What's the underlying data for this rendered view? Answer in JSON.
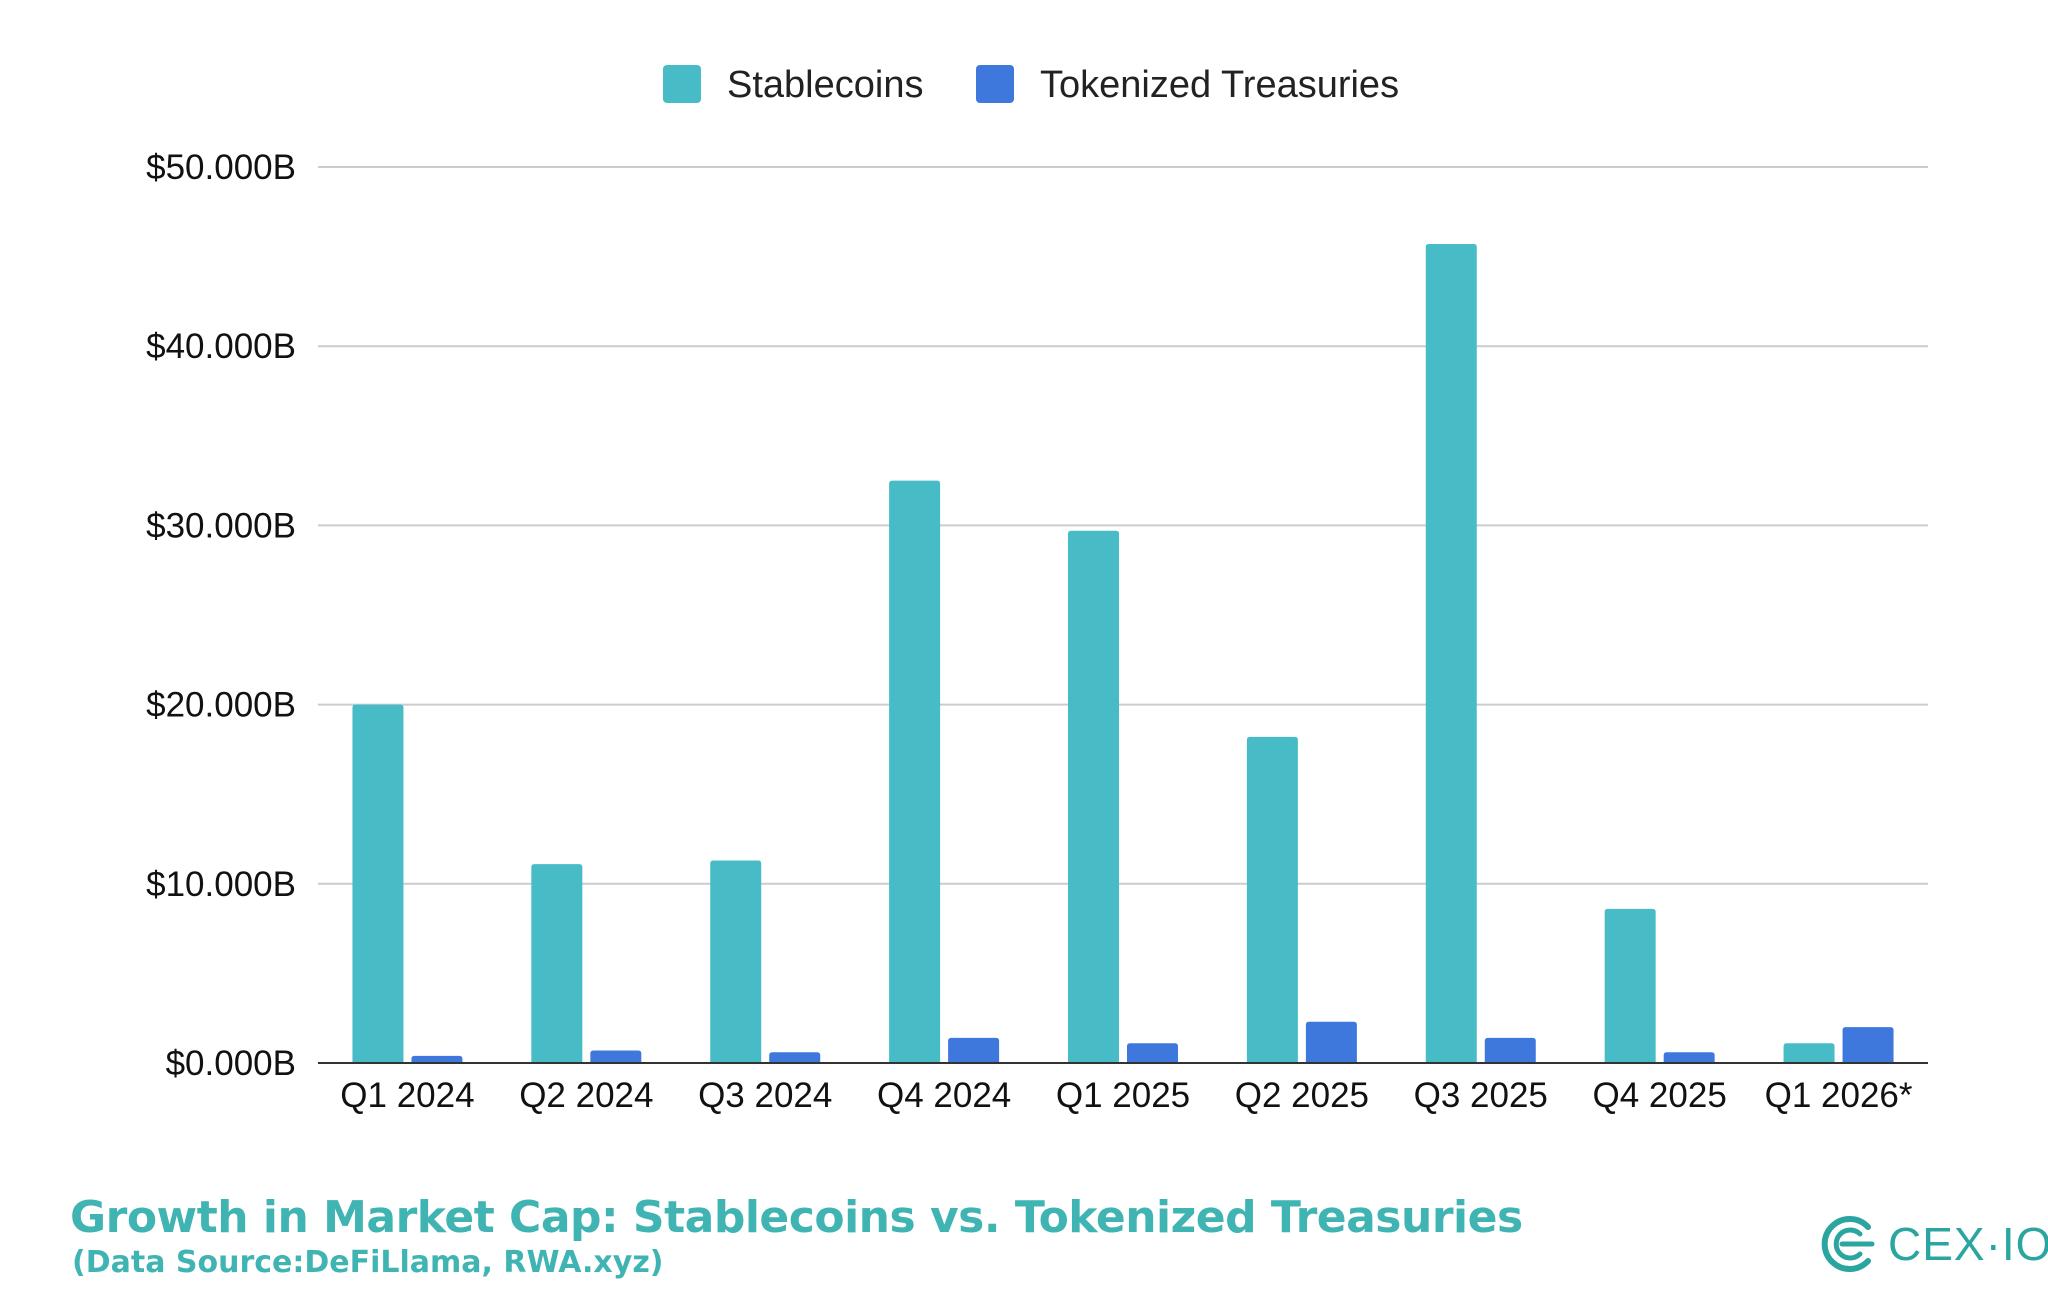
{
  "chart_data": {
    "type": "bar",
    "title": "Growth in Market Cap: Stablecoins vs. Tokenized Treasuries",
    "subtitle": "(Data Source:DeFiLlama, RWA.xyz)",
    "xlabel": "",
    "ylabel": "",
    "categories": [
      "Q1 2024",
      "Q2 2024",
      "Q3 2024",
      "Q4 2024",
      "Q1 2025",
      "Q2 2025",
      "Q3 2025",
      "Q4 2025",
      "Q1 2026*"
    ],
    "series": [
      {
        "name": "Stablecoins",
        "color": "#47bcc6",
        "values": [
          20.0,
          11.1,
          11.3,
          32.5,
          29.7,
          18.2,
          45.7,
          8.6,
          1.1
        ]
      },
      {
        "name": "Tokenized Treasuries",
        "color": "#3f78dc",
        "values": [
          0.4,
          0.7,
          0.6,
          1.4,
          1.1,
          2.3,
          1.4,
          0.6,
          2.0
        ]
      }
    ],
    "ylim": [
      0,
      50
    ],
    "yticks": [
      0,
      10,
      20,
      30,
      40,
      50
    ],
    "ytick_labels": [
      "$0.000B",
      "$10.000B",
      "$20.000B",
      "$30.000B",
      "$40.000B",
      "$50.000B"
    ],
    "grid": true,
    "legend_position": "top-center"
  },
  "branding": {
    "logo_text": "CEX·IO",
    "logo_icon": "cex-io-logo-icon",
    "brand_color": "#2aa5a0"
  }
}
